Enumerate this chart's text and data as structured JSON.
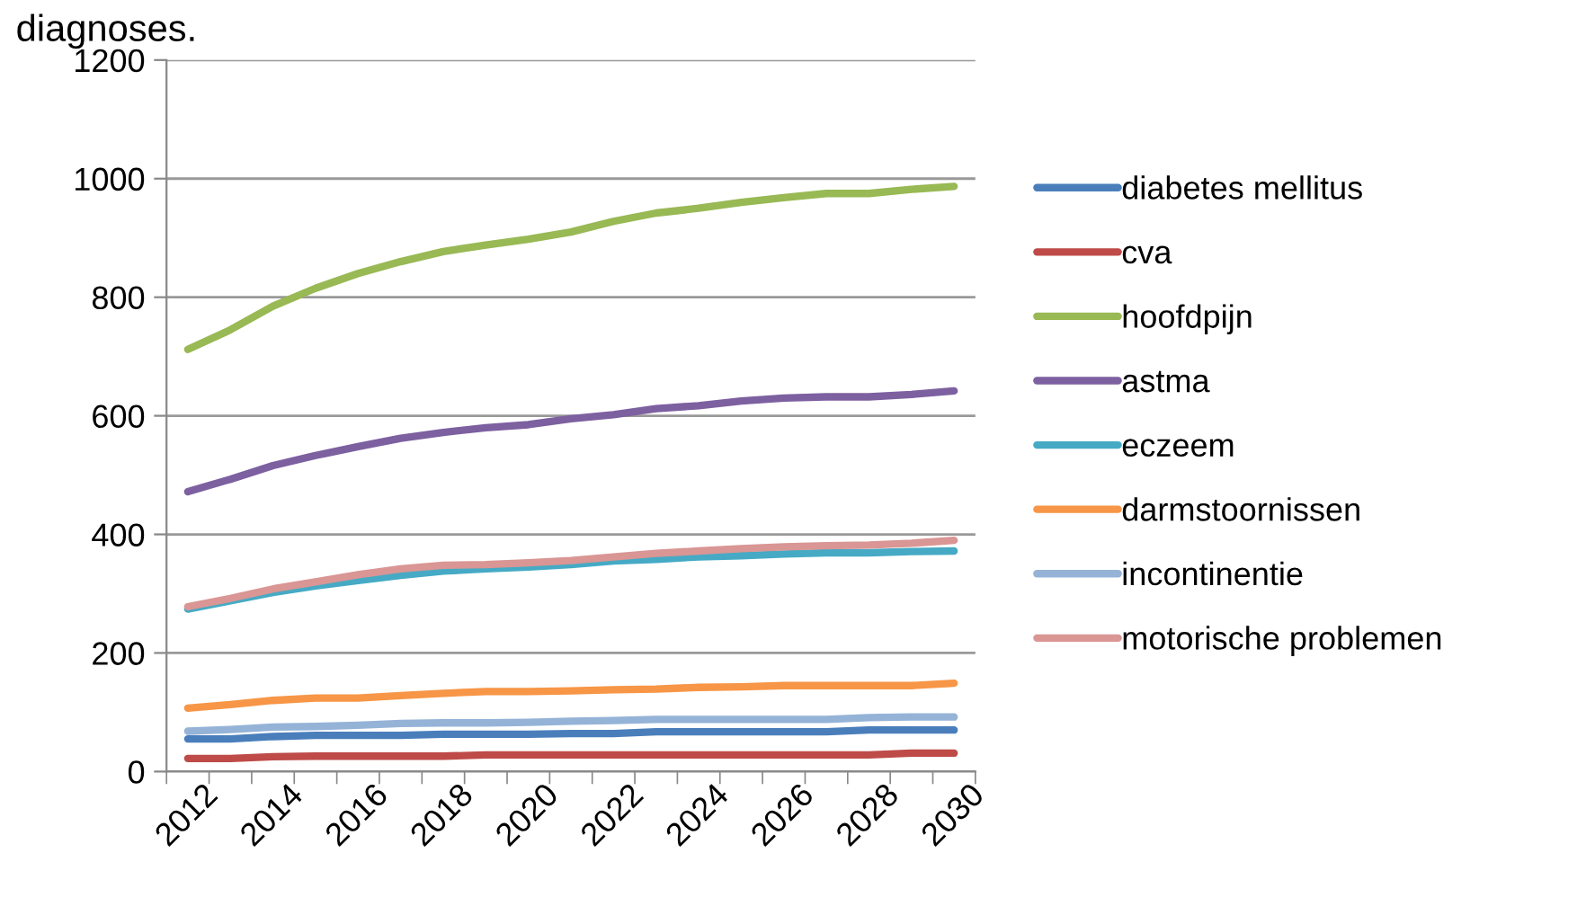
{
  "chart_data": {
    "type": "line",
    "annotations": [
      "diagnoses."
    ],
    "categories": [
      "2012",
      null,
      "2014",
      null,
      "2016",
      null,
      "2018",
      null,
      "2020",
      null,
      "2022",
      null,
      "2024",
      null,
      "2026",
      null,
      "2028",
      null,
      "2030"
    ],
    "series": [
      {
        "name": "diabetes mellitus",
        "color": "#4a7ebb",
        "values": [
          55,
          55,
          59,
          61,
          61,
          61,
          63,
          63,
          63,
          64,
          64,
          67,
          67,
          67,
          67,
          67,
          70,
          70,
          70
        ]
      },
      {
        "name": "cva",
        "color": "#be4b48",
        "values": [
          22,
          22,
          25,
          26,
          26,
          26,
          26,
          28,
          28,
          28,
          28,
          28,
          28,
          28,
          28,
          28,
          28,
          31,
          31
        ]
      },
      {
        "name": "hoofdpijn",
        "color": "#98b954",
        "values": [
          712,
          745,
          785,
          815,
          840,
          860,
          877,
          888,
          898,
          910,
          928,
          942,
          950,
          960,
          968,
          975,
          975,
          982,
          987
        ]
      },
      {
        "name": "astma",
        "color": "#7d60a0",
        "values": [
          472,
          493,
          516,
          533,
          548,
          562,
          572,
          580,
          585,
          595,
          602,
          612,
          617,
          625,
          630,
          632,
          632,
          636,
          642
        ]
      },
      {
        "name": "eczeem",
        "color": "#46aac5",
        "values": [
          274,
          288,
          302,
          313,
          322,
          331,
          338,
          342,
          345,
          349,
          355,
          358,
          362,
          364,
          367,
          369,
          369,
          371,
          372
        ]
      },
      {
        "name": "darmstoornissen",
        "color": "#f79646",
        "values": [
          107,
          113,
          120,
          124,
          124,
          128,
          132,
          135,
          135,
          136,
          138,
          139,
          142,
          143,
          145,
          145,
          145,
          145,
          149
        ]
      },
      {
        "name": "incontinentie",
        "color": "#95b3d7",
        "values": [
          68,
          71,
          75,
          76,
          78,
          81,
          82,
          82,
          83,
          85,
          86,
          88,
          88,
          88,
          88,
          88,
          91,
          92,
          92
        ]
      },
      {
        "name": "motorische problemen",
        "color": "#d99694",
        "values": [
          278,
          292,
          308,
          320,
          332,
          342,
          348,
          349,
          352,
          356,
          362,
          368,
          372,
          376,
          379,
          381,
          382,
          385,
          390
        ]
      }
    ],
    "ylim": [
      0,
      1200
    ],
    "yticks": [
      0,
      200,
      400,
      600,
      800,
      1000,
      1200
    ],
    "grid": "y",
    "legend": "right",
    "marker": "none",
    "line_style": "solid"
  }
}
